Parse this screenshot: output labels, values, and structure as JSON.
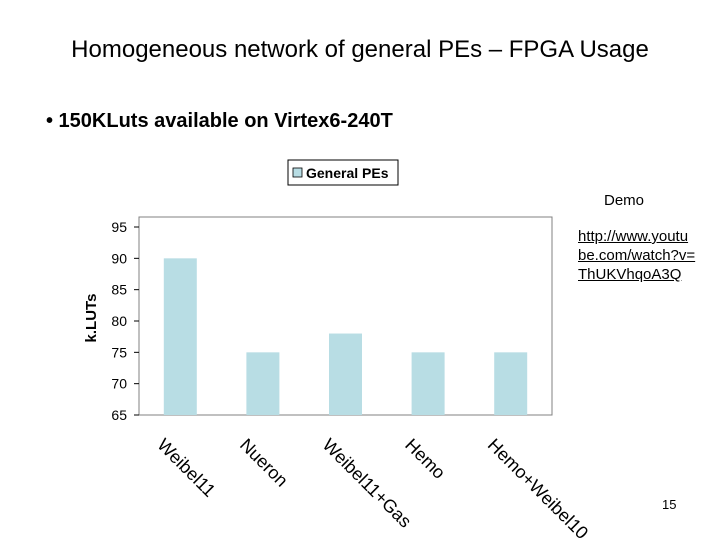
{
  "slide": {
    "title": "Homogeneous network of general PEs – FPGA Usage",
    "bullet": "• 150KLuts available on Virtex6-240T",
    "demo_label": "Demo",
    "demo_link": "http://www.youtube.com/watch?v=ThUKVhqoA3Q",
    "page_number": "15"
  },
  "chart_data": {
    "type": "bar",
    "categories": [
      "Weibel11",
      "Nueron",
      "Weibel11+Gas",
      "Hemo",
      "Hemo+Weibel10"
    ],
    "series": [
      {
        "name": "General PEs",
        "values": [
          90,
          75,
          78,
          75,
          75
        ],
        "color": "#b8dde4"
      }
    ],
    "ylabel": "k.LUTs",
    "xlabel": "",
    "ylim": [
      65,
      95
    ],
    "yticks": [
      95,
      90,
      85,
      80,
      75,
      70,
      65
    ],
    "legend": "top-center",
    "grid": false
  }
}
